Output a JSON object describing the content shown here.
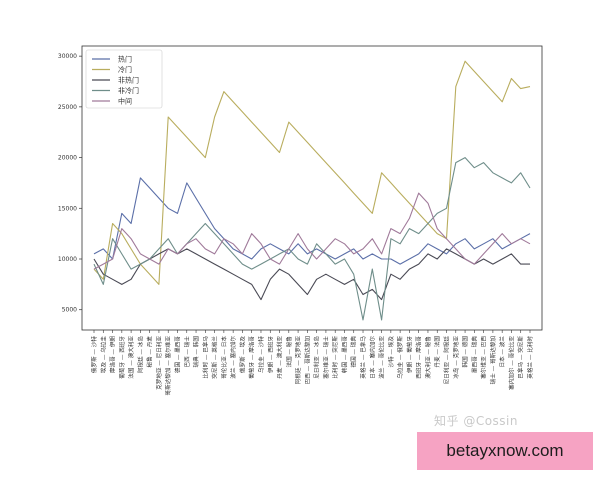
{
  "chart_data": {
    "type": "line",
    "title": "",
    "xlabel": "",
    "ylabel": "",
    "ylim": [
      3000,
      31000
    ],
    "yticks": [
      5000,
      10000,
      15000,
      20000,
      25000,
      30000
    ],
    "grid": false,
    "legend_position": "top-left",
    "categories": [
      "俄罗斯 — 沙特",
      "埃及 — 乌拉圭",
      "摩洛哥 — 伊朗",
      "葡萄牙 — 西班牙",
      "法国 — 澳大利亚",
      "阿根廷 — 冰岛",
      "秘鲁 — 丹麦",
      "克罗地亚 — 尼日利亚",
      "哥斯达黎加 — 塞尔维亚",
      "德国 — 墨西哥",
      "巴西 — 瑞士",
      "瑞典 — 韩国",
      "比利时 — 巴拿马",
      "突尼斯 — 英格兰",
      "哥伦比亚 — 日本",
      "波兰 — 塞内加尔",
      "俄罗斯 — 埃及",
      "葡萄牙 — 摩洛哥",
      "乌拉圭 — 沙特",
      "伊朗 — 西班牙",
      "丹麦 — 澳大利亚",
      "法国 — 秘鲁",
      "阿根廷 — 克罗地亚",
      "巴西 — 哥斯达黎加",
      "尼日利亚 — 冰岛",
      "塞尔维亚 — 瑞士",
      "比利时 — 突尼斯",
      "韩国 — 墨西哥",
      "德国 — 瑞典",
      "英格兰 — 巴拿马",
      "日本 — 塞内加尔",
      "波兰 — 哥伦比亚",
      "沙特 — 埃及",
      "乌拉圭 — 俄罗斯",
      "伊朗 — 葡萄牙",
      "西班牙 — 摩洛哥",
      "澳大利亚 — 秘鲁",
      "丹麦 — 法国",
      "尼日利亚 — 阿根廷",
      "冰岛 — 克罗地亚",
      "韩国 — 德国",
      "墨西哥 — 瑞典",
      "塞尔维亚 — 巴西",
      "瑞士 — 哥斯达黎加",
      "日本 — 波兰",
      "塞内加尔 — 哥伦比亚",
      "巴拿马 — 突尼斯",
      "英格兰 — 比利时"
    ],
    "series": [
      {
        "name": "热门",
        "color": "#5b6fa8",
        "values": [
          10500,
          11000,
          10000,
          14500,
          13500,
          18000,
          17000,
          16000,
          15000,
          14500,
          17500,
          16000,
          14500,
          13000,
          12000,
          11000,
          10500,
          10000,
          11000,
          11500,
          11000,
          10500,
          11500,
          10500,
          11000,
          10500,
          10000,
          10500,
          11000,
          10000,
          10500,
          10000,
          10000,
          9500,
          10000,
          10500,
          11500,
          11000,
          10500,
          11500,
          12000,
          11000,
          11500,
          12000,
          11000,
          11500,
          12000,
          12500
        ]
      },
      {
        "name": "冷门",
        "color": "#b9ad5e",
        "values": [
          9000,
          8000,
          13500,
          12500,
          11000,
          9500,
          8500,
          7500,
          24000,
          23000,
          22000,
          21000,
          20000,
          24000,
          26500,
          25500,
          24500,
          23500,
          22500,
          21500,
          20500,
          23500,
          22500,
          21500,
          20500,
          19500,
          18500,
          17500,
          16500,
          15500,
          14500,
          18500,
          17500,
          16500,
          15500,
          14500,
          13500,
          12500,
          12000,
          27000,
          29500,
          28500,
          27500,
          26500,
          25500,
          27800,
          26800,
          27000
        ]
      },
      {
        "name": "非热门",
        "color": "#4a4a55",
        "values": [
          10000,
          8500,
          8000,
          7500,
          8000,
          9500,
          10000,
          10500,
          11000,
          10500,
          11000,
          10500,
          10000,
          9500,
          9000,
          8500,
          8000,
          7500,
          6000,
          8000,
          9000,
          8500,
          7500,
          6500,
          8000,
          8500,
          8000,
          7500,
          8000,
          6500,
          7000,
          6000,
          8500,
          8000,
          9000,
          9500,
          10500,
          10000,
          11000,
          10500,
          10000,
          9500,
          10000,
          9500,
          10000,
          10500,
          9500,
          9500
        ]
      },
      {
        "name": "非冷门",
        "color": "#6f8e8a",
        "values": [
          9500,
          7500,
          12000,
          10500,
          9000,
          9500,
          10000,
          11000,
          12000,
          10500,
          11500,
          12500,
          13500,
          12500,
          11500,
          10500,
          9500,
          9000,
          9500,
          10000,
          10500,
          11000,
          10000,
          9500,
          11500,
          10500,
          9500,
          10000,
          8500,
          4000,
          9000,
          4000,
          12000,
          11500,
          13000,
          12500,
          13500,
          14500,
          15000,
          19500,
          20000,
          19000,
          19500,
          18500,
          18000,
          17500,
          18500,
          17000
        ]
      },
      {
        "name": "中间",
        "color": "#a07a9a",
        "values": [
          9000,
          9500,
          10000,
          13000,
          12000,
          10500,
          10000,
          9500,
          11000,
          10500,
          11500,
          12000,
          11000,
          10500,
          12000,
          11500,
          10500,
          12500,
          11500,
          10000,
          9500,
          11000,
          12500,
          11000,
          10000,
          11000,
          12000,
          11500,
          10500,
          11000,
          12000,
          10500,
          13000,
          12500,
          14000,
          16500,
          15500,
          13000,
          12000,
          11000,
          10000,
          9500,
          10500,
          11500,
          12500,
          11500,
          12000,
          11500
        ]
      }
    ]
  },
  "watermark": "知乎 @Cossin",
  "badge_text": "betayxnow.com"
}
